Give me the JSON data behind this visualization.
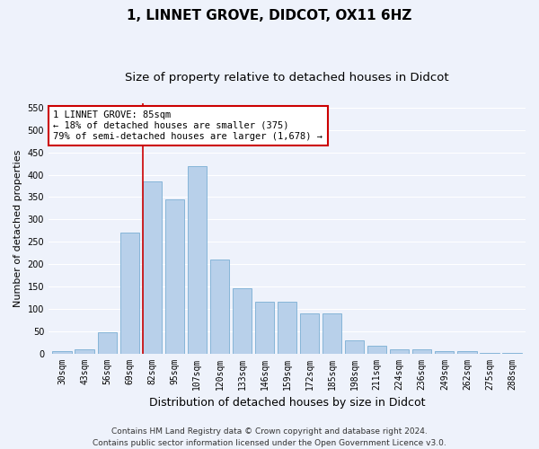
{
  "title": "1, LINNET GROVE, DIDCOT, OX11 6HZ",
  "subtitle": "Size of property relative to detached houses in Didcot",
  "xlabel": "Distribution of detached houses by size in Didcot",
  "ylabel": "Number of detached properties",
  "categories": [
    "30sqm",
    "43sqm",
    "56sqm",
    "69sqm",
    "82sqm",
    "95sqm",
    "107sqm",
    "120sqm",
    "133sqm",
    "146sqm",
    "159sqm",
    "172sqm",
    "185sqm",
    "198sqm",
    "211sqm",
    "224sqm",
    "236sqm",
    "249sqm",
    "262sqm",
    "275sqm",
    "288sqm"
  ],
  "values": [
    5,
    10,
    48,
    270,
    385,
    345,
    420,
    210,
    145,
    115,
    115,
    90,
    90,
    30,
    18,
    10,
    10,
    5,
    5,
    2,
    2
  ],
  "bar_color": "#b8d0ea",
  "bar_edgecolor": "#7aaed4",
  "background_color": "#eef2fb",
  "grid_color": "#ffffff",
  "vline_color": "#cc0000",
  "vline_x_index": 4,
  "annotation_text": "1 LINNET GROVE: 85sqm\n← 18% of detached houses are smaller (375)\n79% of semi-detached houses are larger (1,678) →",
  "annotation_box_edgecolor": "#cc0000",
  "annotation_box_facecolor": "#ffffff",
  "footer_line1": "Contains HM Land Registry data © Crown copyright and database right 2024.",
  "footer_line2": "Contains public sector information licensed under the Open Government Licence v3.0.",
  "ylim": [
    0,
    560
  ],
  "yticks": [
    0,
    50,
    100,
    150,
    200,
    250,
    300,
    350,
    400,
    450,
    500,
    550
  ],
  "title_fontsize": 11,
  "subtitle_fontsize": 9.5,
  "xlabel_fontsize": 9,
  "ylabel_fontsize": 8,
  "tick_fontsize": 7,
  "annotation_fontsize": 7.5,
  "footer_fontsize": 6.5
}
